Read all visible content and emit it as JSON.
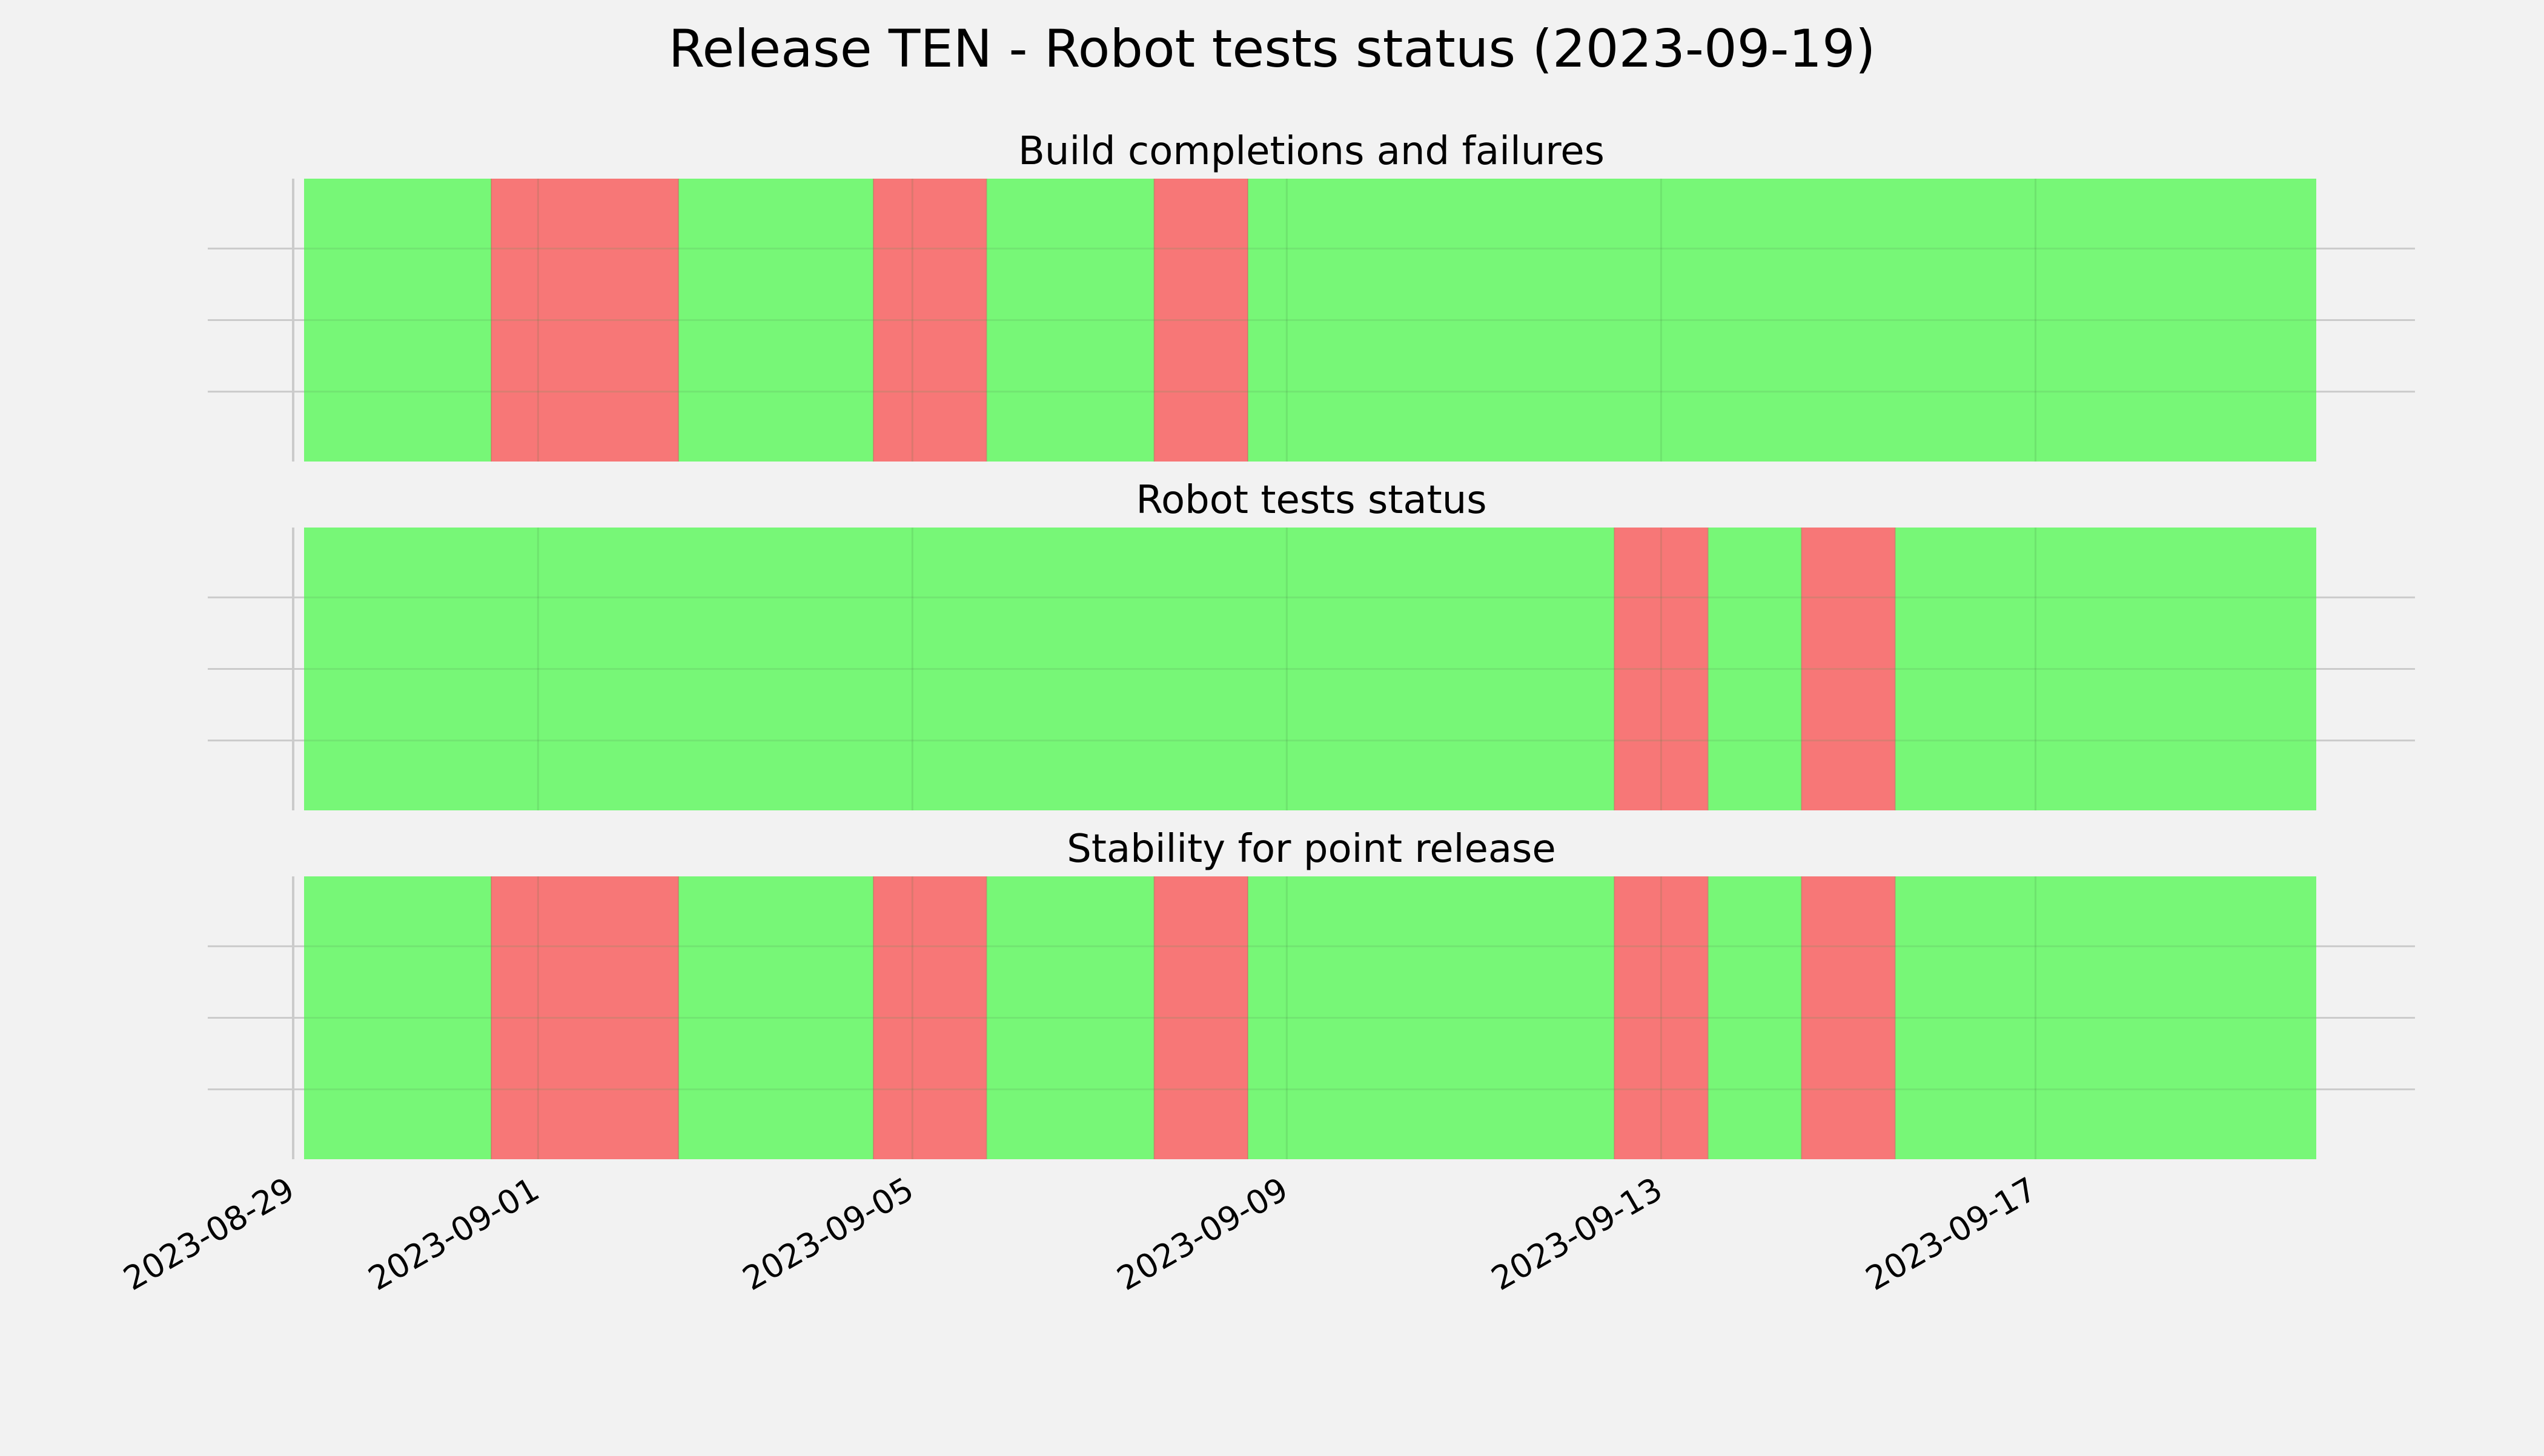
{
  "chart_data": {
    "type": "timeline-status",
    "title": "Release TEN - Robot tests status (2023-09-19)",
    "x_axis": {
      "type": "date",
      "range": [
        "2023-08-29",
        "2023-09-20"
      ],
      "tick_labels": [
        "2023-08-29",
        "2023-09-01",
        "2023-09-05",
        "2023-09-09",
        "2023-09-13",
        "2023-09-17"
      ]
    },
    "y_axis": {
      "tick_labels": []
    },
    "grid": true,
    "colors": {
      "pass": "#77f777",
      "fail": "#f77777",
      "background": "#f2f2f2",
      "grid": "#cbcbcb"
    },
    "panels": [
      {
        "title": "Build completions and failures",
        "segments": [
          {
            "start": "2023-08-29T12:00",
            "end": "2023-08-31T12:00",
            "status": "pass"
          },
          {
            "start": "2023-08-31T12:00",
            "end": "2023-09-02T12:00",
            "status": "fail"
          },
          {
            "start": "2023-09-02T12:00",
            "end": "2023-09-04T14:00",
            "status": "pass"
          },
          {
            "start": "2023-09-04T14:00",
            "end": "2023-09-05T19:00",
            "status": "fail"
          },
          {
            "start": "2023-09-05T19:00",
            "end": "2023-09-07T14:00",
            "status": "pass"
          },
          {
            "start": "2023-09-07T14:00",
            "end": "2023-09-08T14:00",
            "status": "fail"
          },
          {
            "start": "2023-09-08T14:00",
            "end": "2023-09-20T00:00",
            "status": "pass"
          }
        ]
      },
      {
        "title": "Robot tests status",
        "segments": [
          {
            "start": "2023-08-29T12:00",
            "end": "2023-09-12T12:00",
            "status": "pass"
          },
          {
            "start": "2023-09-12T12:00",
            "end": "2023-09-13T12:00",
            "status": "fail"
          },
          {
            "start": "2023-09-13T12:00",
            "end": "2023-09-14T12:00",
            "status": "pass"
          },
          {
            "start": "2023-09-14T12:00",
            "end": "2023-09-15T12:00",
            "status": "fail"
          },
          {
            "start": "2023-09-15T12:00",
            "end": "2023-09-20T00:00",
            "status": "pass"
          }
        ]
      },
      {
        "title": "Stability for point release",
        "segments": [
          {
            "start": "2023-08-29T12:00",
            "end": "2023-08-31T12:00",
            "status": "pass"
          },
          {
            "start": "2023-08-31T12:00",
            "end": "2023-09-02T12:00",
            "status": "fail"
          },
          {
            "start": "2023-09-02T12:00",
            "end": "2023-09-04T14:00",
            "status": "pass"
          },
          {
            "start": "2023-09-04T14:00",
            "end": "2023-09-05T19:00",
            "status": "fail"
          },
          {
            "start": "2023-09-05T19:00",
            "end": "2023-09-07T14:00",
            "status": "pass"
          },
          {
            "start": "2023-09-07T14:00",
            "end": "2023-09-08T14:00",
            "status": "fail"
          },
          {
            "start": "2023-09-08T14:00",
            "end": "2023-09-12T12:00",
            "status": "pass"
          },
          {
            "start": "2023-09-12T12:00",
            "end": "2023-09-13T12:00",
            "status": "fail"
          },
          {
            "start": "2023-09-13T12:00",
            "end": "2023-09-14T12:00",
            "status": "pass"
          },
          {
            "start": "2023-09-14T12:00",
            "end": "2023-09-15T12:00",
            "status": "fail"
          },
          {
            "start": "2023-09-15T12:00",
            "end": "2023-09-20T00:00",
            "status": "pass"
          }
        ]
      }
    ]
  }
}
